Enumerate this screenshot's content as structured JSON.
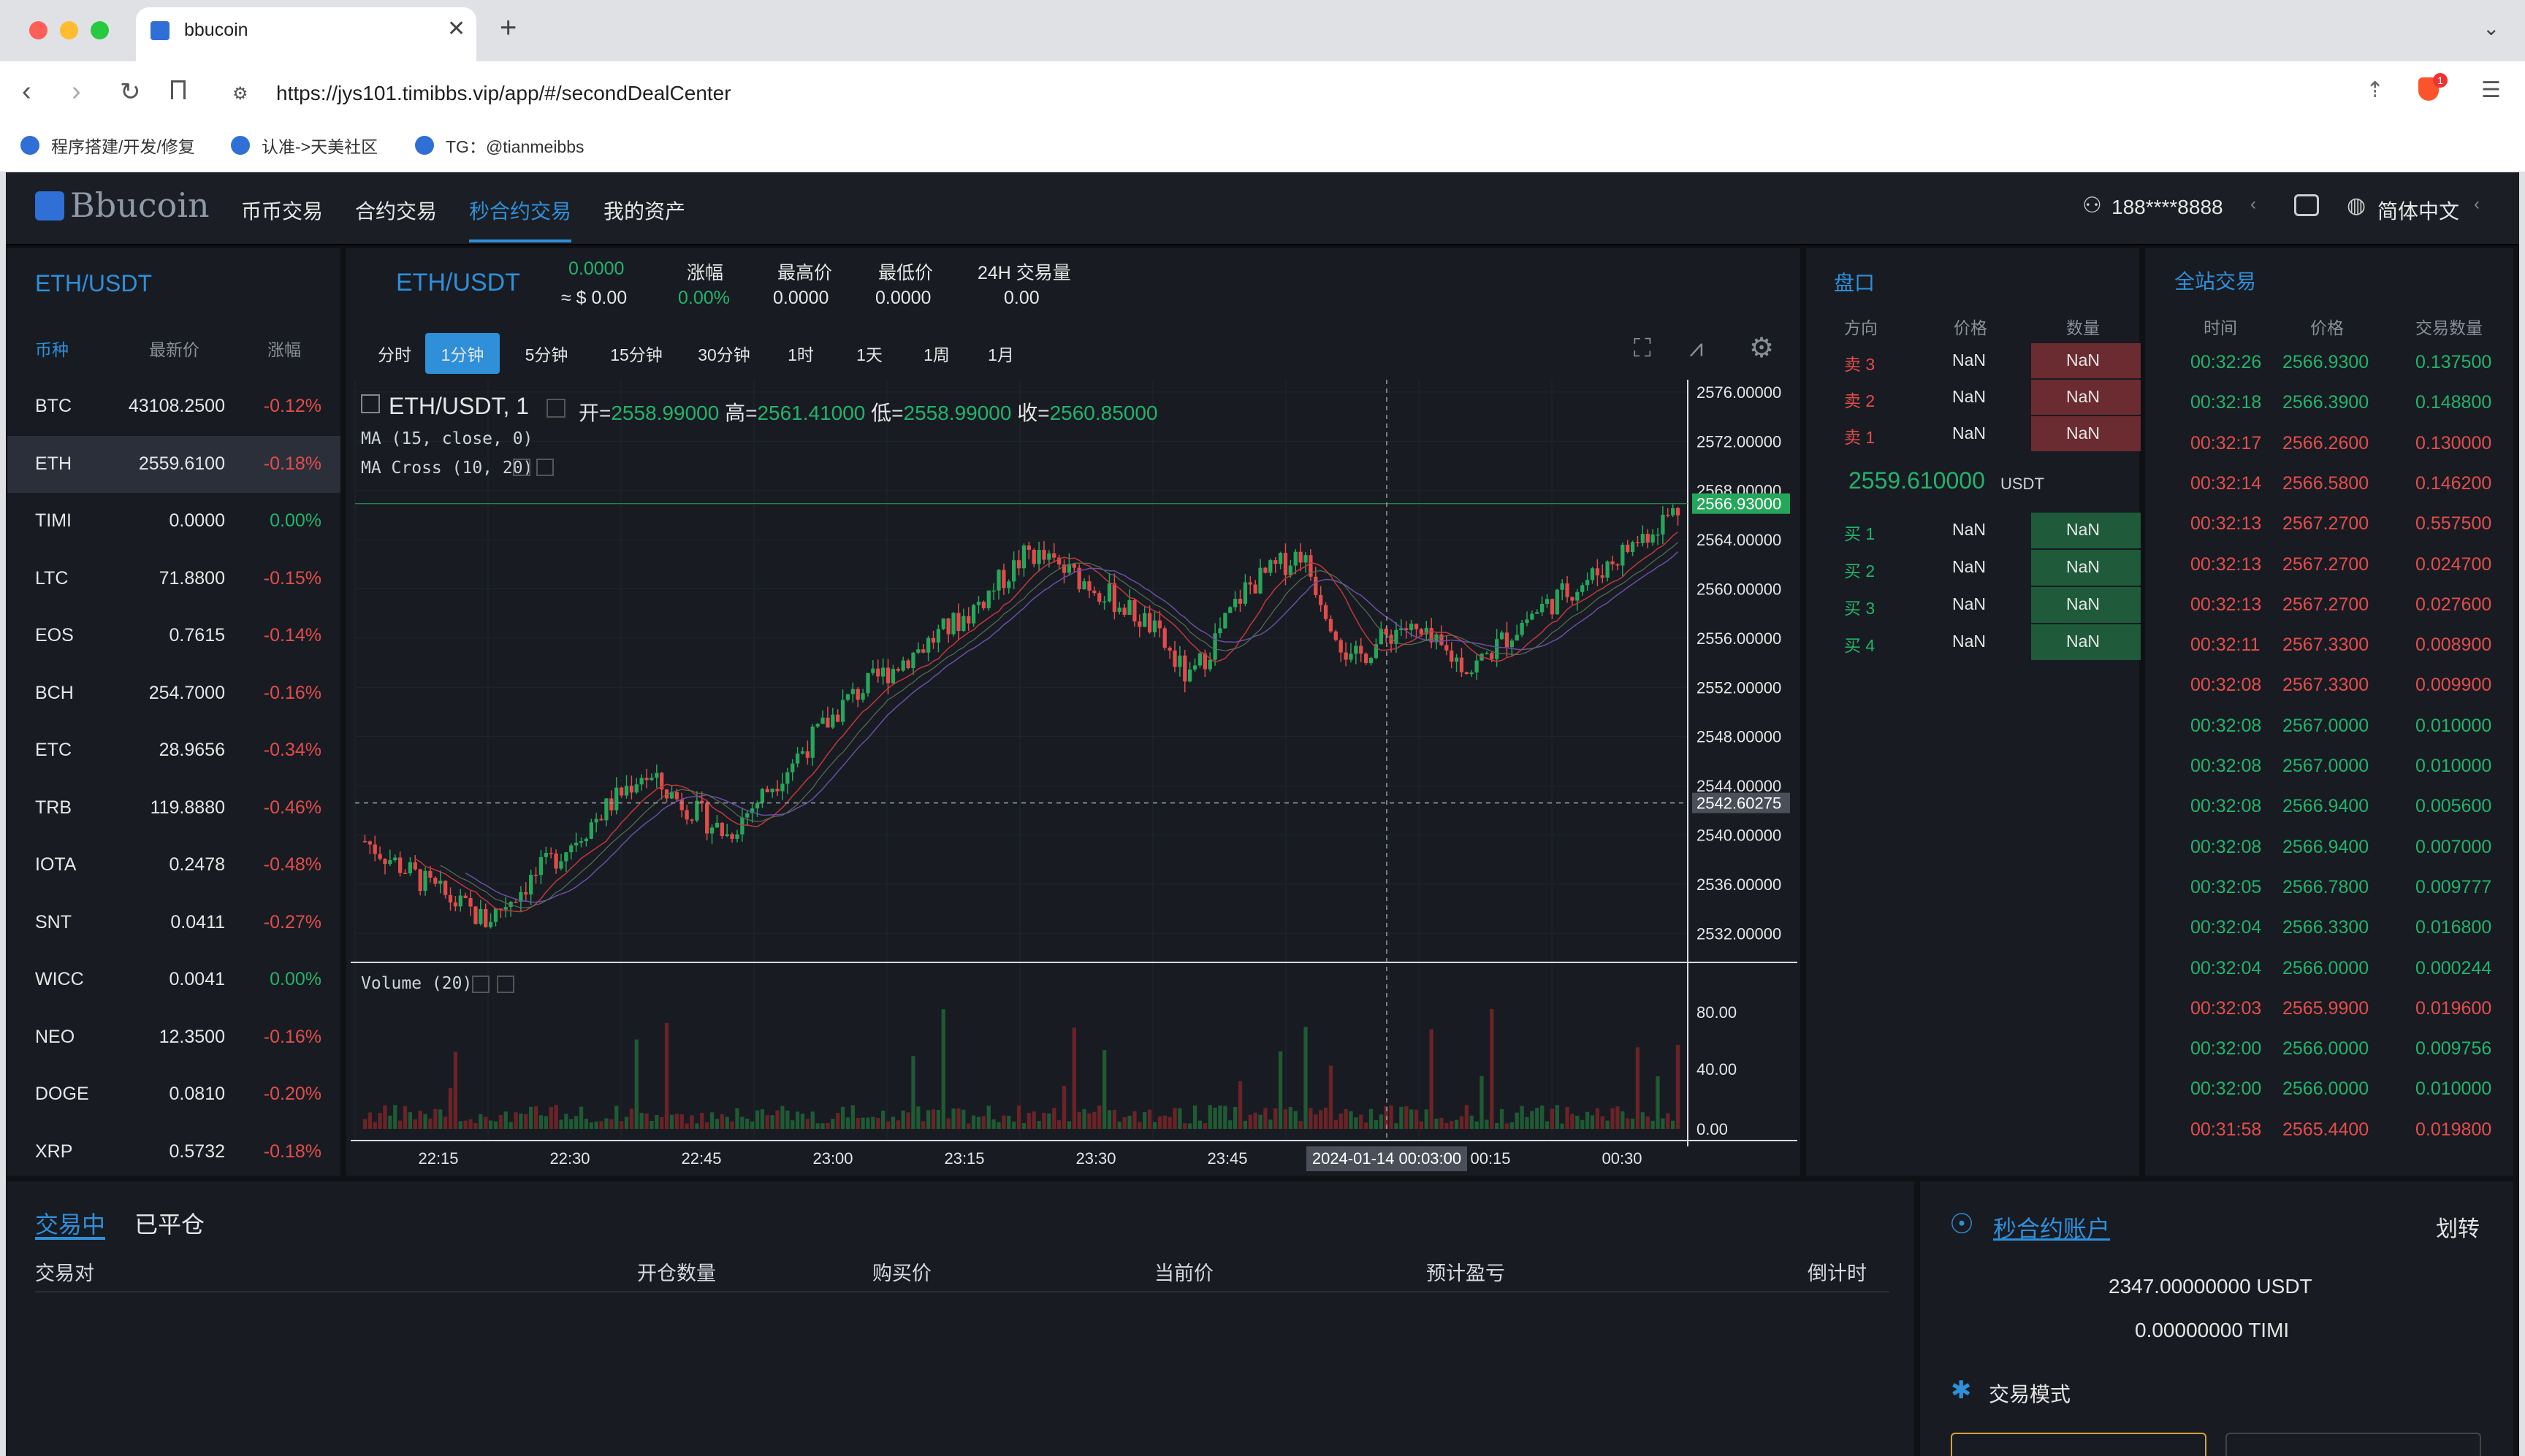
{
  "browser": {
    "tab_title": "bbucoin",
    "url": "https://jys101.timibbs.vip/app/#/secondDealCenter",
    "bookmarks": [
      "程序搭建/开发/修复",
      "认准->天美社区",
      "TG：@tianmeibbs"
    ],
    "ext_badge": "1"
  },
  "nav": {
    "logo": "Bbucoin",
    "items": [
      "币币交易",
      "合约交易",
      "秒合约交易",
      "我的资产"
    ],
    "user": "188****8888",
    "lang": "简体中文"
  },
  "market": {
    "pair": "ETH/USDT",
    "headers": [
      "币种",
      "最新价",
      "涨幅"
    ],
    "rows": [
      [
        "BTC",
        "43108.2500",
        "-0.12%"
      ],
      [
        "ETH",
        "2559.6100",
        "-0.18%"
      ],
      [
        "TIMI",
        "0.0000",
        "0.00%"
      ],
      [
        "LTC",
        "71.8800",
        "-0.15%"
      ],
      [
        "EOS",
        "0.7615",
        "-0.14%"
      ],
      [
        "BCH",
        "254.7000",
        "-0.16%"
      ],
      [
        "ETC",
        "28.9656",
        "-0.34%"
      ],
      [
        "TRB",
        "119.8880",
        "-0.46%"
      ],
      [
        "IOTA",
        "0.2478",
        "-0.48%"
      ],
      [
        "SNT",
        "0.0411",
        "-0.27%"
      ],
      [
        "WICC",
        "0.0041",
        "0.00%"
      ],
      [
        "NEO",
        "12.3500",
        "-0.16%"
      ],
      [
        "DOGE",
        "0.0810",
        "-0.20%"
      ],
      [
        "XRP",
        "0.5732",
        "-0.18%"
      ]
    ]
  },
  "ticker": {
    "pair": "ETH/USDT",
    "price": "0.0000",
    "price_cny": "≈ $ 0.00",
    "change_label": "涨幅",
    "change": "0.00%",
    "high_label": "最高价",
    "high": "0.0000",
    "low_label": "最低价",
    "low": "0.0000",
    "vol_label": "24H 交易量",
    "vol": "0.00"
  },
  "timeframes": [
    "分时",
    "1分钟",
    "5分钟",
    "15分钟",
    "30分钟",
    "1时",
    "1天",
    "1周",
    "1月"
  ],
  "chart_legend": {
    "symbol": "ETH/USDT, 1",
    "open_label": "开=",
    "open": "2558.99000",
    "high_label": "高=",
    "high": "2561.41000",
    "low_label": "低=",
    "low": "2558.99000",
    "close_label": "收=",
    "close": "2560.85000",
    "ma": "MA (15, close, 0)",
    "macross": "MA Cross (10, 20)",
    "volume": "Volume (20)"
  },
  "chart_data": {
    "type": "candlestick",
    "ylim": [
      2530,
      2577
    ],
    "y_ticks": [
      "2576.00000",
      "2572.00000",
      "2568.00000",
      "2564.00000",
      "2560.00000",
      "2556.00000",
      "2552.00000",
      "2548.00000",
      "2544.00000",
      "2540.00000",
      "2536.00000",
      "2532.00000"
    ],
    "last_price": "2566.93000",
    "crosshair_price": "2542.60275",
    "crosshair_time": "2024-01-14 00:03:00",
    "x_ticks": [
      "22:15",
      "22:30",
      "22:45",
      "23:00",
      "23:15",
      "23:30",
      "23:45",
      "00:15",
      "00:30"
    ],
    "vol_ticks": [
      "80.00",
      "40.00",
      "0.00"
    ]
  },
  "orderbook": {
    "title": "盘口",
    "headers": [
      "方向",
      "价格",
      "数量"
    ],
    "sells": [
      [
        "卖 3",
        "NaN",
        "NaN"
      ],
      [
        "卖 2",
        "NaN",
        "NaN"
      ],
      [
        "卖 1",
        "NaN",
        "NaN"
      ]
    ],
    "mid": "2559.610000",
    "mid_unit": "USDT",
    "buys": [
      [
        "买 1",
        "NaN",
        "NaN"
      ],
      [
        "买 2",
        "NaN",
        "NaN"
      ],
      [
        "买 3",
        "NaN",
        "NaN"
      ],
      [
        "买 4",
        "NaN",
        "NaN"
      ]
    ]
  },
  "trades": {
    "title": "全站交易",
    "headers": [
      "时间",
      "价格",
      "交易数量"
    ],
    "rows": [
      [
        "00:32:26",
        "2566.9300",
        "0.137500",
        "g"
      ],
      [
        "00:32:18",
        "2566.3900",
        "0.148800",
        "g"
      ],
      [
        "00:32:17",
        "2566.2600",
        "0.130000",
        "r"
      ],
      [
        "00:32:14",
        "2566.5800",
        "0.146200",
        "r"
      ],
      [
        "00:32:13",
        "2567.2700",
        "0.557500",
        "r"
      ],
      [
        "00:32:13",
        "2567.2700",
        "0.024700",
        "r"
      ],
      [
        "00:32:13",
        "2567.2700",
        "0.027600",
        "r"
      ],
      [
        "00:32:11",
        "2567.3300",
        "0.008900",
        "r"
      ],
      [
        "00:32:08",
        "2567.3300",
        "0.009900",
        "r"
      ],
      [
        "00:32:08",
        "2567.0000",
        "0.010000",
        "g"
      ],
      [
        "00:32:08",
        "2567.0000",
        "0.010000",
        "g"
      ],
      [
        "00:32:08",
        "2566.9400",
        "0.005600",
        "g"
      ],
      [
        "00:32:08",
        "2566.9400",
        "0.007000",
        "g"
      ],
      [
        "00:32:05",
        "2566.7800",
        "0.009777",
        "g"
      ],
      [
        "00:32:04",
        "2566.3300",
        "0.016800",
        "g"
      ],
      [
        "00:32:04",
        "2566.0000",
        "0.000244",
        "g"
      ],
      [
        "00:32:03",
        "2565.9900",
        "0.019600",
        "r"
      ],
      [
        "00:32:00",
        "2566.0000",
        "0.009756",
        "g"
      ],
      [
        "00:32:00",
        "2566.0000",
        "0.010000",
        "g"
      ],
      [
        "00:31:58",
        "2565.4400",
        "0.019800",
        "r"
      ]
    ]
  },
  "positions": {
    "tabs": [
      "交易中",
      "已平仓"
    ],
    "headers": [
      "交易对",
      "开仓数量",
      "购买价",
      "当前价",
      "预计盈亏",
      "倒计时"
    ]
  },
  "account": {
    "title": "秒合约账户",
    "transfer": "划转",
    "usdt": "2347.00000000 USDT",
    "timi": "0.00000000 TIMI",
    "mode": "交易模式"
  }
}
